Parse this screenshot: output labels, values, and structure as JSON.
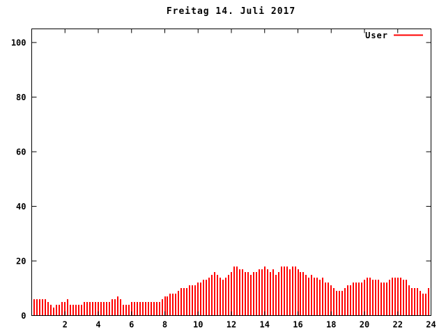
{
  "chart_data": {
    "type": "bar",
    "title": "Freitag 14. Juli 2017",
    "xlabel": "",
    "ylabel": "",
    "xlim": [
      0,
      24
    ],
    "ylim": [
      0,
      105
    ],
    "x_ticks": [
      2,
      4,
      6,
      8,
      10,
      12,
      14,
      16,
      18,
      20,
      22,
      24
    ],
    "y_ticks": [
      0,
      20,
      40,
      60,
      80,
      100
    ],
    "grid": false,
    "legend_position": "top-right",
    "x_unit": "hour of day",
    "sample_interval_minutes": 10,
    "first_sample": "00:10",
    "series": [
      {
        "name": "User",
        "color": "#ff0000",
        "values": [
          6,
          6,
          6,
          6,
          6,
          5,
          4,
          3,
          4,
          4,
          5,
          5,
          6,
          4,
          4,
          4,
          4,
          4,
          5,
          5,
          5,
          5,
          5,
          5,
          5,
          5,
          5,
          5,
          6,
          6,
          7,
          6,
          4,
          4,
          4,
          5,
          5,
          5,
          5,
          5,
          5,
          5,
          5,
          5,
          5,
          5,
          6,
          7,
          7,
          8,
          8,
          8,
          9,
          10,
          10,
          10,
          11,
          11,
          11,
          12,
          12,
          13,
          13,
          14,
          15,
          16,
          15,
          14,
          13,
          14,
          15,
          16,
          18,
          18,
          17,
          17,
          16,
          16,
          15,
          16,
          16,
          17,
          17,
          18,
          17,
          16,
          17,
          15,
          16,
          18,
          18,
          18,
          17,
          18,
          18,
          17,
          16,
          16,
          15,
          14,
          15,
          14,
          14,
          13,
          14,
          12,
          12,
          11,
          10,
          9,
          9,
          9,
          10,
          11,
          11,
          12,
          12,
          12,
          12,
          13,
          14,
          14,
          13,
          13,
          13,
          12,
          12,
          12,
          13,
          14,
          14,
          14,
          14,
          13,
          13,
          11,
          10,
          10,
          10,
          9,
          8,
          8,
          10,
          8
        ]
      }
    ]
  },
  "style": {
    "background": "#ffffff",
    "axis_color": "#000000",
    "text_color": "#000000",
    "series_color": "#ff0000"
  }
}
